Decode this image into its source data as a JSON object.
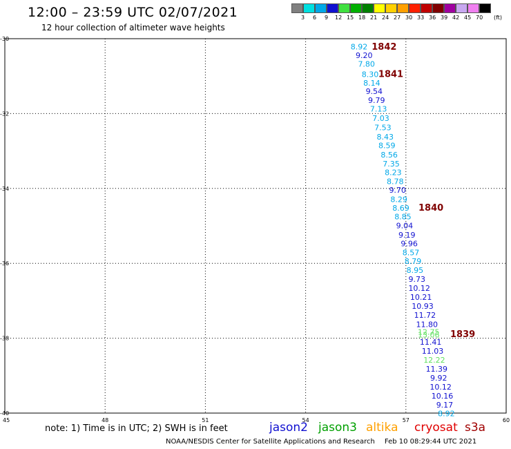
{
  "header": {
    "title": "12:00 – 23:59 UTC 02/07/2021",
    "subtitle": "12 hour collection of altimeter wave heights"
  },
  "legend": {
    "unit": "(ft)",
    "colors": [
      "#808080",
      "#00e0e0",
      "#00a8e8",
      "#1010d0",
      "#40e040",
      "#00b000",
      "#008000",
      "#ffff00",
      "#ffd000",
      "#ffa000",
      "#ff2000",
      "#c00000",
      "#800000",
      "#a000a0",
      "#c8a8f0",
      "#f080f0",
      "#000000"
    ],
    "labels": [
      "3",
      "6",
      "9",
      "12",
      "15",
      "18",
      "21",
      "24",
      "27",
      "30",
      "33",
      "36",
      "39",
      "42",
      "45",
      "70"
    ]
  },
  "map": {
    "lat_ticks": [
      "-30",
      "-32",
      "-34",
      "-36",
      "-38",
      "-40"
    ],
    "lon_ticks": [
      "45",
      "48",
      "51",
      "54",
      "57",
      "60"
    ],
    "lat_range": [
      -40,
      -30
    ],
    "lon_range": [
      45,
      60
    ]
  },
  "chart_data": {
    "type": "scatter",
    "x_axis": "longitude",
    "y_axis": "latitude",
    "xlim": [
      45,
      60
    ],
    "ylim": [
      -40,
      -30
    ],
    "grid": true,
    "points": [
      {
        "lon": 55.6,
        "lat": -30.21,
        "value": "8.92",
        "color": "#00a8e8"
      },
      {
        "lon": 55.75,
        "lat": -30.44,
        "value": "9.20",
        "color": "#1010d0"
      },
      {
        "lon": 55.82,
        "lat": -30.67,
        "value": "7.80",
        "color": "#00a8e8"
      },
      {
        "lon": 55.93,
        "lat": -30.95,
        "value": "8.30",
        "color": "#00a8e8"
      },
      {
        "lon": 55.98,
        "lat": -31.18,
        "value": "8.14",
        "color": "#00a8e8"
      },
      {
        "lon": 56.05,
        "lat": -31.4,
        "value": "9.54",
        "color": "#1010d0"
      },
      {
        "lon": 56.12,
        "lat": -31.64,
        "value": "9.79",
        "color": "#1010d0"
      },
      {
        "lon": 56.18,
        "lat": -31.87,
        "value": "7.13",
        "color": "#00a8e8"
      },
      {
        "lon": 56.25,
        "lat": -32.12,
        "value": "7.03",
        "color": "#00a8e8"
      },
      {
        "lon": 56.31,
        "lat": -32.37,
        "value": "7.53",
        "color": "#00a8e8"
      },
      {
        "lon": 56.38,
        "lat": -32.62,
        "value": "8.43",
        "color": "#00a8e8"
      },
      {
        "lon": 56.43,
        "lat": -32.85,
        "value": "8.59",
        "color": "#00a8e8"
      },
      {
        "lon": 56.5,
        "lat": -33.1,
        "value": "8.56",
        "color": "#00a8e8"
      },
      {
        "lon": 56.56,
        "lat": -33.34,
        "value": "7.35",
        "color": "#00a8e8"
      },
      {
        "lon": 56.62,
        "lat": -33.57,
        "value": "8.23",
        "color": "#00a8e8"
      },
      {
        "lon": 56.68,
        "lat": -33.81,
        "value": "8.78",
        "color": "#00a8e8"
      },
      {
        "lon": 56.75,
        "lat": -34.04,
        "value": "9.70",
        "color": "#1010d0"
      },
      {
        "lon": 56.79,
        "lat": -34.29,
        "value": "8.29",
        "color": "#00a8e8"
      },
      {
        "lon": 56.85,
        "lat": -34.52,
        "value": "8.69",
        "color": "#00a8e8"
      },
      {
        "lon": 56.91,
        "lat": -34.75,
        "value": "8.85",
        "color": "#00a8e8"
      },
      {
        "lon": 56.96,
        "lat": -34.99,
        "value": "9.04",
        "color": "#1010d0"
      },
      {
        "lon": 57.03,
        "lat": -35.24,
        "value": "9.19",
        "color": "#1010d0"
      },
      {
        "lon": 57.1,
        "lat": -35.47,
        "value": "9.96",
        "color": "#1010d0"
      },
      {
        "lon": 57.15,
        "lat": -35.71,
        "value": "8.57",
        "color": "#00a8e8"
      },
      {
        "lon": 57.21,
        "lat": -35.94,
        "value": "8.79",
        "color": "#00a8e8"
      },
      {
        "lon": 57.27,
        "lat": -36.18,
        "value": "8.95",
        "color": "#00a8e8"
      },
      {
        "lon": 57.33,
        "lat": -36.42,
        "value": "9.73",
        "color": "#1010d0"
      },
      {
        "lon": 57.4,
        "lat": -36.66,
        "value": "10.12",
        "color": "#1010d0"
      },
      {
        "lon": 57.45,
        "lat": -36.9,
        "value": "10.21",
        "color": "#1010d0"
      },
      {
        "lon": 57.5,
        "lat": -37.14,
        "value": "10.93",
        "color": "#1010d0"
      },
      {
        "lon": 57.57,
        "lat": -37.38,
        "value": "11.72",
        "color": "#1010d0"
      },
      {
        "lon": 57.63,
        "lat": -37.63,
        "value": "11.80",
        "color": "#1010d0"
      },
      {
        "lon": 57.68,
        "lat": -37.83,
        "value": "12.75",
        "color": "#60e060"
      },
      {
        "lon": 57.68,
        "lat": -37.91,
        "value": "13.06",
        "color": "#60e060"
      },
      {
        "lon": 57.74,
        "lat": -38.1,
        "value": "11.41",
        "color": "#1010d0"
      },
      {
        "lon": 57.8,
        "lat": -38.34,
        "value": "11.03",
        "color": "#1010d0"
      },
      {
        "lon": 57.85,
        "lat": -38.58,
        "value": "12.22",
        "color": "#60e060"
      },
      {
        "lon": 57.92,
        "lat": -38.82,
        "value": "11.39",
        "color": "#1010d0"
      },
      {
        "lon": 57.98,
        "lat": -39.06,
        "value": "9.92",
        "color": "#1010d0"
      },
      {
        "lon": 58.04,
        "lat": -39.3,
        "value": "10.12",
        "color": "#1010d0"
      },
      {
        "lon": 58.09,
        "lat": -39.54,
        "value": "10.16",
        "color": "#1010d0"
      },
      {
        "lon": 58.16,
        "lat": -39.78,
        "value": "9.17",
        "color": "#1010d0"
      },
      {
        "lon": 58.21,
        "lat": -40.01,
        "value": "8.92",
        "color": "#00a8e8"
      }
    ],
    "time_labels": [
      {
        "lon": 56.35,
        "lat": -30.2,
        "text": "1842",
        "color": "#800000"
      },
      {
        "lon": 56.55,
        "lat": -30.93,
        "text": "1841",
        "color": "#800000"
      },
      {
        "lon": 57.75,
        "lat": -34.5,
        "text": "1840",
        "color": "#800000"
      },
      {
        "lon": 58.7,
        "lat": -37.88,
        "text": "1839",
        "color": "#800000"
      }
    ]
  },
  "footer": {
    "note": "note: 1) Time is in UTC; 2) SWH is in feet",
    "satellites": [
      {
        "name": "jason2",
        "color": "#1010d0"
      },
      {
        "name": "jason3",
        "color": "#00a000"
      },
      {
        "name": "altika",
        "color": "#ffa000"
      },
      {
        "name": "cryosat",
        "color": "#e00000"
      },
      {
        "name": "s3a",
        "color": "#a00000"
      }
    ],
    "credit": "NOAA/NESDIS Center for Satellite Applications and Research",
    "timestamp": "Feb 10 08:29:44 UTC 2021"
  }
}
